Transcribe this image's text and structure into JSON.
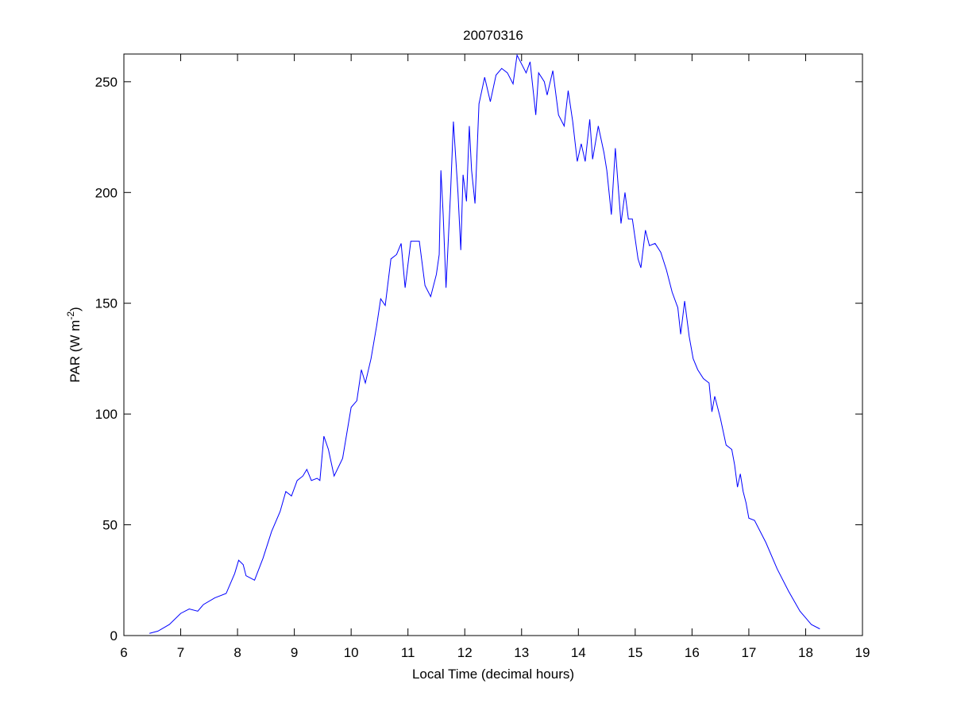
{
  "chart_data": {
    "type": "line",
    "title": "20070316",
    "x_label": "Local Time (decimal hours)",
    "y_label": {
      "text": "PAR (W m",
      "superscript": "-2",
      "suffix": ")"
    },
    "color": "#0000ff",
    "x": [
      6.45,
      6.6,
      6.8,
      7.0,
      7.15,
      7.3,
      7.4,
      7.6,
      7.8,
      7.95,
      8.02,
      8.1,
      8.15,
      8.3,
      8.45,
      8.6,
      8.75,
      8.85,
      8.95,
      9.05,
      9.15,
      9.22,
      9.3,
      9.4,
      9.45,
      9.52,
      9.6,
      9.7,
      9.85,
      10.0,
      10.1,
      10.18,
      10.25,
      10.35,
      10.45,
      10.52,
      10.6,
      10.7,
      10.8,
      10.88,
      10.95,
      11.05,
      11.2,
      11.3,
      11.4,
      11.5,
      11.55,
      11.58,
      11.62,
      11.67,
      11.75,
      11.8,
      11.88,
      11.93,
      11.97,
      12.03,
      12.08,
      12.12,
      12.18,
      12.25,
      12.35,
      12.45,
      12.55,
      12.65,
      12.75,
      12.85,
      12.92,
      13.0,
      13.08,
      13.15,
      13.25,
      13.3,
      13.4,
      13.45,
      13.55,
      13.65,
      13.75,
      13.82,
      13.9,
      13.98,
      14.05,
      14.12,
      14.2,
      14.25,
      14.35,
      14.45,
      14.5,
      14.58,
      14.65,
      14.75,
      14.82,
      14.88,
      14.95,
      15.05,
      15.1,
      15.18,
      15.25,
      15.35,
      15.45,
      15.55,
      15.65,
      15.75,
      15.8,
      15.87,
      15.95,
      16.02,
      16.1,
      16.2,
      16.3,
      16.35,
      16.4,
      16.5,
      16.6,
      16.7,
      16.75,
      16.8,
      16.85,
      16.9,
      16.95,
      17.0,
      17.1,
      17.3,
      17.5,
      17.7,
      17.9,
      18.1,
      18.25
    ],
    "values": [
      1,
      2,
      5,
      10,
      12,
      11,
      14,
      17,
      19,
      28,
      34,
      32,
      27,
      25,
      35,
      47,
      56,
      65,
      63,
      70,
      72,
      75,
      70,
      71,
      70,
      90,
      84,
      72,
      80,
      103,
      106,
      120,
      114,
      125,
      140,
      152,
      149,
      170,
      172,
      177,
      157,
      178,
      178,
      158,
      153,
      163,
      172,
      210,
      190,
      157,
      200,
      232,
      200,
      174,
      208,
      196,
      230,
      210,
      195,
      240,
      252,
      241,
      253,
      256,
      254,
      249,
      262,
      258,
      254,
      259,
      235,
      254,
      250,
      244,
      255,
      235,
      230,
      246,
      232,
      214,
      222,
      214,
      233,
      215,
      230,
      218,
      210,
      190,
      220,
      186,
      200,
      188,
      188,
      170,
      166,
      183,
      176,
      177,
      173,
      165,
      155,
      148,
      136,
      151,
      135,
      125,
      120,
      116,
      114,
      101,
      108,
      98,
      86,
      84,
      77,
      67,
      73,
      65,
      60,
      53,
      52,
      42,
      30,
      20,
      11,
      5,
      3
    ],
    "xlim": [
      6,
      19
    ],
    "ylim": [
      0,
      262.5
    ],
    "xticks": [
      6,
      7,
      8,
      9,
      10,
      11,
      12,
      13,
      14,
      15,
      16,
      17,
      18,
      19
    ],
    "yticks": [
      0,
      50,
      100,
      150,
      200,
      250
    ],
    "grid": false
  }
}
